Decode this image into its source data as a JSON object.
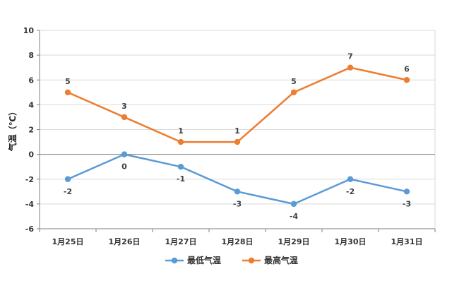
{
  "chart_data": {
    "type": "line",
    "categories": [
      "1月25日",
      "1月26日",
      "1月27日",
      "1月28日",
      "1月29日",
      "1月30日",
      "1月31日"
    ],
    "series": [
      {
        "name": "最低气温",
        "values": [
          -2,
          0,
          -1,
          -3,
          -4,
          -2,
          -3
        ],
        "color": "#5B9BD5",
        "label_position": "below"
      },
      {
        "name": "最高气温",
        "values": [
          5,
          3,
          1,
          1,
          5,
          7,
          6
        ],
        "color": "#ED7D31",
        "label_position": "above"
      }
    ],
    "ylabel": "气温（℃）",
    "ylim": [
      -6,
      10
    ],
    "yticks": [
      "10",
      "8",
      "6",
      "4",
      "2",
      "0",
      "-2",
      "-4",
      "-6"
    ],
    "grid": true,
    "legend_position": "bottom"
  },
  "colors": {
    "axis": "#7F7F7F",
    "grid": "#D9D9D9",
    "zero_line": "#808080"
  }
}
